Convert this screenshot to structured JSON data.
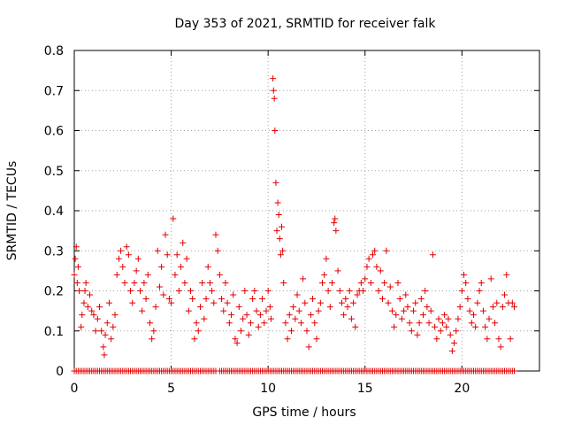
{
  "chart_data": {
    "type": "scatter",
    "title": "Day 353 of 2021, SRMTID for receiver falk",
    "xlabel": "GPS time / hours",
    "ylabel": "SRMTID / TECUs",
    "xlim": [
      0,
      24
    ],
    "ylim": [
      0,
      0.8
    ],
    "xticks": [
      0,
      5,
      10,
      15,
      20
    ],
    "yticks": [
      0,
      0.1,
      0.2,
      0.3,
      0.4,
      0.5,
      0.6,
      0.7,
      0.8
    ],
    "xtick_labels": [
      "0",
      "5",
      "10",
      "15",
      "20"
    ],
    "ytick_labels": [
      "0",
      "0.1",
      "0.2",
      "0.3",
      "0.4",
      "0.5",
      "0.6",
      "0.7",
      "0.8"
    ],
    "grid": true,
    "legend": "none",
    "marker": "plus",
    "series": [
      {
        "name": "SRMTID",
        "color": "#e00000",
        "points": [
          [
            0.0,
            0.24
          ],
          [
            0.05,
            0.28
          ],
          [
            0.1,
            0.31
          ],
          [
            0.15,
            0.22
          ],
          [
            0.2,
            0.26
          ],
          [
            0.25,
            0.2
          ],
          [
            0.35,
            0.11
          ],
          [
            0.4,
            0.14
          ],
          [
            0.5,
            0.17
          ],
          [
            0.55,
            0.2
          ],
          [
            0.6,
            0.22
          ],
          [
            0.7,
            0.16
          ],
          [
            0.8,
            0.19
          ],
          [
            0.9,
            0.15
          ],
          [
            1.0,
            0.14
          ],
          [
            1.1,
            0.1
          ],
          [
            1.2,
            0.13
          ],
          [
            1.3,
            0.16
          ],
          [
            1.4,
            0.1
          ],
          [
            1.5,
            0.06
          ],
          [
            1.55,
            0.04
          ],
          [
            1.6,
            0.09
          ],
          [
            1.7,
            0.12
          ],
          [
            1.8,
            0.17
          ],
          [
            1.9,
            0.08
          ],
          [
            2.0,
            0.11
          ],
          [
            2.1,
            0.14
          ],
          [
            2.2,
            0.24
          ],
          [
            2.3,
            0.28
          ],
          [
            2.4,
            0.3
          ],
          [
            2.5,
            0.26
          ],
          [
            2.6,
            0.22
          ],
          [
            2.7,
            0.31
          ],
          [
            2.8,
            0.29
          ],
          [
            2.9,
            0.2
          ],
          [
            3.0,
            0.17
          ],
          [
            3.1,
            0.22
          ],
          [
            3.2,
            0.25
          ],
          [
            3.3,
            0.28
          ],
          [
            3.4,
            0.2
          ],
          [
            3.5,
            0.15
          ],
          [
            3.6,
            0.22
          ],
          [
            3.7,
            0.18
          ],
          [
            3.8,
            0.24
          ],
          [
            3.9,
            0.12
          ],
          [
            4.0,
            0.08
          ],
          [
            4.1,
            0.1
          ],
          [
            4.2,
            0.16
          ],
          [
            4.3,
            0.3
          ],
          [
            4.4,
            0.21
          ],
          [
            4.5,
            0.26
          ],
          [
            4.6,
            0.19
          ],
          [
            4.7,
            0.34
          ],
          [
            4.8,
            0.29
          ],
          [
            4.9,
            0.18
          ],
          [
            5.0,
            0.17
          ],
          [
            5.1,
            0.38
          ],
          [
            5.2,
            0.24
          ],
          [
            5.3,
            0.29
          ],
          [
            5.4,
            0.2
          ],
          [
            5.5,
            0.26
          ],
          [
            5.6,
            0.32
          ],
          [
            5.7,
            0.22
          ],
          [
            5.8,
            0.28
          ],
          [
            5.9,
            0.15
          ],
          [
            6.0,
            0.2
          ],
          [
            6.1,
            0.18
          ],
          [
            6.2,
            0.08
          ],
          [
            6.3,
            0.12
          ],
          [
            6.4,
            0.1
          ],
          [
            6.5,
            0.16
          ],
          [
            6.6,
            0.22
          ],
          [
            6.7,
            0.13
          ],
          [
            6.8,
            0.18
          ],
          [
            6.9,
            0.26
          ],
          [
            7.0,
            0.22
          ],
          [
            7.1,
            0.2
          ],
          [
            7.2,
            0.17
          ],
          [
            7.3,
            0.34
          ],
          [
            7.4,
            0.3
          ],
          [
            7.5,
            0.24
          ],
          [
            7.6,
            0.18
          ],
          [
            7.7,
            0.15
          ],
          [
            7.8,
            0.22
          ],
          [
            7.9,
            0.17
          ],
          [
            8.0,
            0.12
          ],
          [
            8.1,
            0.14
          ],
          [
            8.2,
            0.19
          ],
          [
            8.3,
            0.08
          ],
          [
            8.4,
            0.07
          ],
          [
            8.5,
            0.16
          ],
          [
            8.6,
            0.1
          ],
          [
            8.7,
            0.13
          ],
          [
            8.8,
            0.2
          ],
          [
            8.9,
            0.14
          ],
          [
            9.0,
            0.09
          ],
          [
            9.1,
            0.12
          ],
          [
            9.2,
            0.18
          ],
          [
            9.3,
            0.2
          ],
          [
            9.4,
            0.15
          ],
          [
            9.5,
            0.11
          ],
          [
            9.6,
            0.14
          ],
          [
            9.7,
            0.18
          ],
          [
            9.8,
            0.12
          ],
          [
            9.9,
            0.15
          ],
          [
            10.0,
            0.2
          ],
          [
            10.1,
            0.16
          ],
          [
            10.15,
            0.13
          ],
          [
            10.25,
            0.73
          ],
          [
            10.28,
            0.7
          ],
          [
            10.32,
            0.68
          ],
          [
            10.35,
            0.6
          ],
          [
            10.4,
            0.47
          ],
          [
            10.45,
            0.35
          ],
          [
            10.5,
            0.42
          ],
          [
            10.55,
            0.39
          ],
          [
            10.6,
            0.33
          ],
          [
            10.65,
            0.29
          ],
          [
            10.7,
            0.36
          ],
          [
            10.75,
            0.3
          ],
          [
            10.8,
            0.22
          ],
          [
            10.9,
            0.12
          ],
          [
            11.0,
            0.08
          ],
          [
            11.1,
            0.14
          ],
          [
            11.2,
            0.1
          ],
          [
            11.3,
            0.16
          ],
          [
            11.4,
            0.13
          ],
          [
            11.5,
            0.19
          ],
          [
            11.6,
            0.15
          ],
          [
            11.7,
            0.12
          ],
          [
            11.8,
            0.23
          ],
          [
            11.9,
            0.17
          ],
          [
            12.0,
            0.1
          ],
          [
            12.1,
            0.06
          ],
          [
            12.2,
            0.14
          ],
          [
            12.3,
            0.18
          ],
          [
            12.4,
            0.12
          ],
          [
            12.5,
            0.08
          ],
          [
            12.6,
            0.15
          ],
          [
            12.7,
            0.17
          ],
          [
            12.8,
            0.22
          ],
          [
            12.9,
            0.24
          ],
          [
            13.0,
            0.28
          ],
          [
            13.1,
            0.2
          ],
          [
            13.2,
            0.16
          ],
          [
            13.3,
            0.22
          ],
          [
            13.4,
            0.37
          ],
          [
            13.45,
            0.38
          ],
          [
            13.5,
            0.35
          ],
          [
            13.6,
            0.25
          ],
          [
            13.7,
            0.2
          ],
          [
            13.8,
            0.17
          ],
          [
            13.9,
            0.14
          ],
          [
            14.0,
            0.18
          ],
          [
            14.1,
            0.16
          ],
          [
            14.2,
            0.2
          ],
          [
            14.3,
            0.13
          ],
          [
            14.4,
            0.17
          ],
          [
            14.5,
            0.11
          ],
          [
            14.6,
            0.19
          ],
          [
            14.7,
            0.2
          ],
          [
            14.8,
            0.22
          ],
          [
            14.9,
            0.2
          ],
          [
            15.0,
            0.23
          ],
          [
            15.1,
            0.26
          ],
          [
            15.2,
            0.28
          ],
          [
            15.3,
            0.22
          ],
          [
            15.4,
            0.29
          ],
          [
            15.5,
            0.3
          ],
          [
            15.6,
            0.26
          ],
          [
            15.7,
            0.2
          ],
          [
            15.8,
            0.25
          ],
          [
            15.9,
            0.18
          ],
          [
            16.0,
            0.22
          ],
          [
            16.1,
            0.3
          ],
          [
            16.2,
            0.17
          ],
          [
            16.3,
            0.21
          ],
          [
            16.4,
            0.15
          ],
          [
            16.5,
            0.11
          ],
          [
            16.6,
            0.14
          ],
          [
            16.7,
            0.22
          ],
          [
            16.8,
            0.18
          ],
          [
            16.9,
            0.13
          ],
          [
            17.0,
            0.15
          ],
          [
            17.1,
            0.19
          ],
          [
            17.2,
            0.16
          ],
          [
            17.3,
            0.12
          ],
          [
            17.4,
            0.1
          ],
          [
            17.5,
            0.15
          ],
          [
            17.6,
            0.17
          ],
          [
            17.7,
            0.09
          ],
          [
            17.8,
            0.12
          ],
          [
            17.9,
            0.18
          ],
          [
            18.0,
            0.14
          ],
          [
            18.1,
            0.2
          ],
          [
            18.2,
            0.16
          ],
          [
            18.3,
            0.12
          ],
          [
            18.4,
            0.15
          ],
          [
            18.5,
            0.29
          ],
          [
            18.6,
            0.11
          ],
          [
            18.7,
            0.08
          ],
          [
            18.8,
            0.13
          ],
          [
            18.9,
            0.1
          ],
          [
            19.0,
            0.12
          ],
          [
            19.1,
            0.14
          ],
          [
            19.2,
            0.11
          ],
          [
            19.3,
            0.13
          ],
          [
            19.4,
            0.09
          ],
          [
            19.5,
            0.05
          ],
          [
            19.6,
            0.07
          ],
          [
            19.7,
            0.1
          ],
          [
            19.8,
            0.13
          ],
          [
            19.9,
            0.16
          ],
          [
            20.0,
            0.2
          ],
          [
            20.1,
            0.24
          ],
          [
            20.2,
            0.22
          ],
          [
            20.3,
            0.18
          ],
          [
            20.4,
            0.15
          ],
          [
            20.5,
            0.12
          ],
          [
            20.6,
            0.14
          ],
          [
            20.7,
            0.11
          ],
          [
            20.8,
            0.17
          ],
          [
            20.9,
            0.2
          ],
          [
            21.0,
            0.22
          ],
          [
            21.1,
            0.15
          ],
          [
            21.2,
            0.11
          ],
          [
            21.3,
            0.08
          ],
          [
            21.4,
            0.13
          ],
          [
            21.5,
            0.23
          ],
          [
            21.6,
            0.16
          ],
          [
            21.7,
            0.12
          ],
          [
            21.8,
            0.17
          ],
          [
            21.9,
            0.08
          ],
          [
            22.0,
            0.06
          ],
          [
            22.1,
            0.16
          ],
          [
            22.2,
            0.19
          ],
          [
            22.3,
            0.24
          ],
          [
            22.4,
            0.17
          ],
          [
            22.5,
            0.08
          ],
          [
            22.6,
            0.17
          ],
          [
            22.7,
            0.16
          ]
        ],
        "zero_points_x": [
          0.0,
          0.1,
          0.2,
          0.3,
          0.4,
          0.5,
          0.6,
          0.7,
          0.8,
          0.9,
          1.0,
          1.1,
          1.2,
          1.3,
          1.4,
          1.5,
          1.6,
          1.7,
          1.8,
          1.9,
          2.0,
          2.1,
          2.2,
          2.3,
          2.4,
          2.5,
          2.6,
          2.7,
          2.8,
          2.9,
          3.0,
          3.1,
          3.2,
          3.3,
          3.4,
          3.5,
          3.6,
          3.7,
          3.8,
          3.9,
          4.0,
          4.1,
          4.2,
          4.3,
          4.4,
          4.5,
          4.6,
          4.7,
          4.8,
          4.9,
          5.0,
          5.1,
          5.2,
          5.3,
          5.4,
          5.5,
          5.6,
          5.7,
          5.8,
          5.9,
          6.0,
          6.1,
          6.2,
          6.3,
          6.4,
          6.5,
          6.6,
          6.7,
          6.8,
          6.9,
          7.0,
          7.1,
          7.2,
          7.3,
          7.5,
          7.6,
          7.7,
          7.8,
          7.9,
          8.0,
          8.1,
          8.2,
          8.3,
          8.4,
          8.5,
          8.6,
          8.7,
          8.8,
          8.9,
          9.0,
          9.1,
          9.2,
          9.3,
          9.4,
          9.5,
          9.6,
          9.7,
          9.8,
          9.9,
          10.0,
          10.1,
          10.2,
          10.3,
          10.4,
          10.5,
          10.6,
          10.7,
          10.8,
          10.9,
          11.0,
          11.1,
          11.2,
          11.3,
          11.4,
          11.5,
          11.6,
          11.7,
          11.8,
          11.9,
          12.0,
          12.1,
          12.2,
          12.3,
          12.4,
          12.5,
          12.6,
          12.7,
          12.8,
          12.9,
          13.0,
          13.1,
          13.2,
          13.3,
          13.4,
          13.5,
          13.6,
          13.7,
          13.8,
          13.9,
          14.0,
          14.1,
          14.2,
          14.3,
          14.4,
          14.5,
          14.6,
          14.7,
          14.8,
          14.9,
          15.0,
          15.1,
          15.2,
          15.3,
          15.4,
          15.5,
          15.6,
          15.7,
          15.8,
          15.9,
          16.0,
          16.1,
          16.2,
          16.3,
          16.4,
          16.5,
          16.6,
          16.7,
          16.8,
          16.9,
          17.0,
          17.1,
          17.2,
          17.3,
          17.4,
          17.5,
          17.6,
          17.7,
          17.8,
          17.9,
          18.0,
          18.1,
          18.2,
          18.3,
          18.4,
          18.5,
          18.6,
          18.7,
          18.8,
          18.9,
          19.0,
          19.1,
          19.2,
          19.3,
          19.4,
          19.5,
          19.6,
          19.7,
          19.8,
          19.9,
          20.0,
          20.1,
          20.2,
          20.3,
          20.4,
          20.5,
          20.6,
          20.7,
          20.8,
          20.9,
          21.0,
          21.1,
          21.2,
          21.3,
          21.4,
          21.5,
          21.6,
          21.7,
          21.8,
          21.9,
          22.0,
          22.1,
          22.2,
          22.3,
          22.4,
          22.5,
          22.6,
          22.7
        ]
      }
    ]
  }
}
